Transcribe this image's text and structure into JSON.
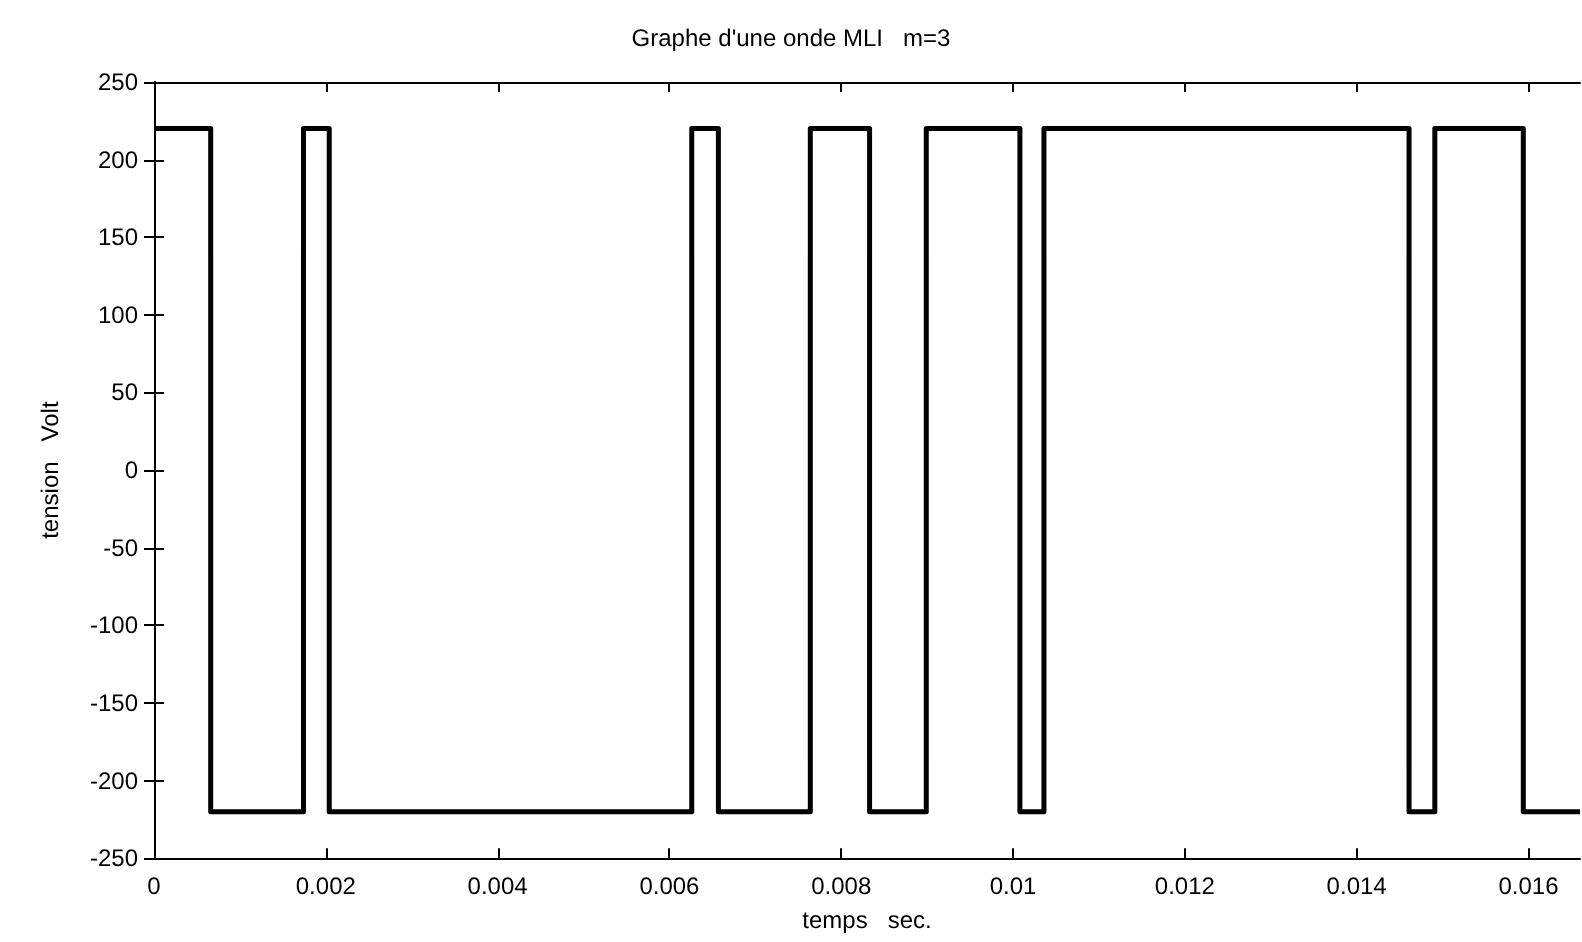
{
  "chart_data": {
    "type": "step",
    "title": "Graphe d'une onde MLI   m=3",
    "xlabel": "temps   sec.",
    "ylabel": "tension   Volt",
    "x": [
      0,
      0.00066,
      0.00174,
      0.00204,
      0.00626,
      0.00657,
      0.00764,
      0.00833,
      0.00899,
      0.01008,
      0.01036,
      0.01461,
      0.01491,
      0.01594,
      0.0166
    ],
    "series": [
      {
        "color": "#000000",
        "values": [
          220,
          -220,
          220,
          -220,
          220,
          -220,
          220,
          -220,
          220,
          -220,
          220,
          -220,
          220,
          -220,
          -220
        ]
      }
    ],
    "xlim": [
      0,
      0.0166
    ],
    "xticks": [
      0,
      0.002,
      0.004,
      0.006,
      0.008,
      0.01,
      0.012,
      0.014,
      0.016
    ],
    "ylim": [
      -250,
      250
    ],
    "yticks": [
      -250,
      -200,
      -150,
      -100,
      -50,
      0,
      50,
      100,
      150,
      200,
      250
    ],
    "grid": false,
    "marker": "none",
    "line_style": "solid"
  }
}
